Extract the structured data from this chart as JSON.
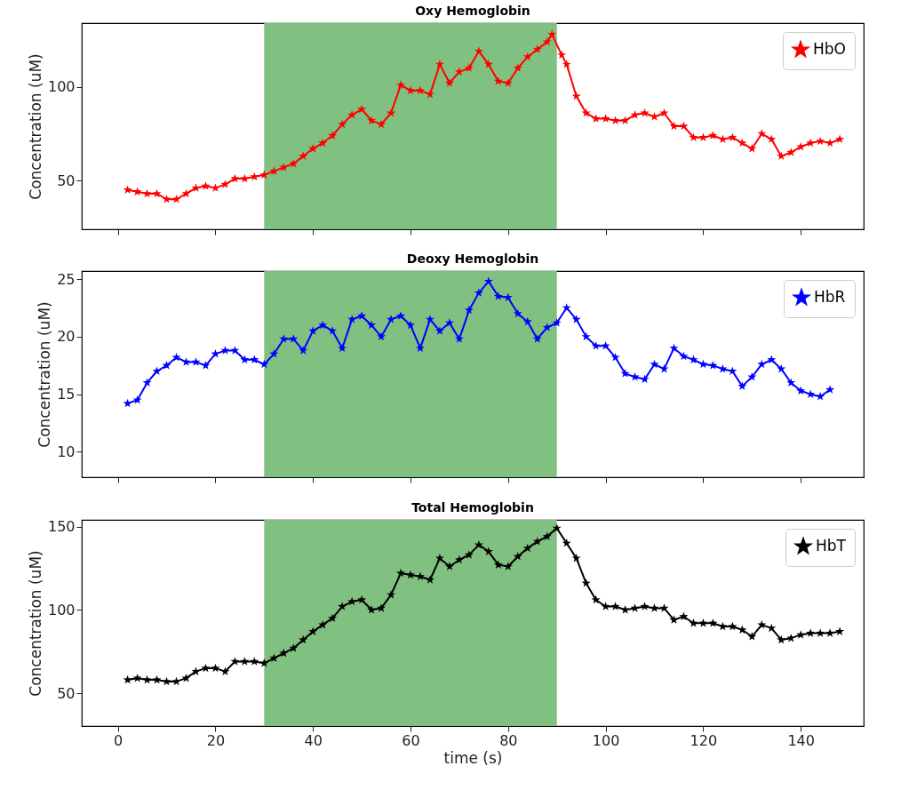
{
  "chart_data": [
    {
      "type": "line",
      "title": "Oxy  Hemoglobin",
      "ylabel": "Concentration (uM)",
      "tick_labels": "y",
      "legend": "top right",
      "marker": "star",
      "line_style": "solid",
      "grid": false,
      "x": [
        2,
        4,
        6,
        8,
        10,
        12,
        14,
        16,
        18,
        20,
        22,
        24,
        26,
        28,
        30,
        32,
        34,
        36,
        38,
        40,
        42,
        44,
        46,
        48,
        50,
        52,
        54,
        56,
        58,
        60,
        62,
        64,
        66,
        68,
        70,
        72,
        74,
        76,
        78,
        80,
        82,
        84,
        86,
        88,
        89,
        91,
        92,
        94,
        96,
        98,
        100,
        102,
        104,
        106,
        108,
        110,
        112,
        114,
        116,
        118,
        120,
        122,
        124,
        126,
        128,
        130,
        132,
        134,
        136,
        138,
        140,
        142,
        144,
        146,
        148
      ],
      "series": [
        {
          "name": "HbO",
          "color": "#ff0000",
          "values": [
            45,
            44,
            43,
            43,
            40,
            40,
            43,
            46,
            47,
            46,
            48,
            51,
            51,
            52,
            53,
            55,
            57,
            59,
            63,
            67,
            70,
            74,
            80,
            85,
            88,
            82,
            80,
            86,
            101,
            98,
            98,
            96,
            112,
            102,
            108,
            110,
            119,
            112,
            103,
            102,
            110,
            116,
            120,
            124,
            128,
            117,
            112,
            95,
            86,
            83,
            83,
            82,
            82,
            85,
            86,
            84,
            86,
            79,
            79,
            73,
            73,
            74,
            72,
            73,
            70,
            67,
            75,
            72,
            63,
            65,
            68,
            70,
            71,
            70,
            72
          ]
        }
      ],
      "xlim": [
        -7.4,
        152.9
      ],
      "xticks": [
        0,
        20,
        40,
        60,
        80,
        100,
        120,
        140
      ],
      "ylim": [
        24,
        134
      ],
      "yticks": [
        50,
        100
      ],
      "bands": [
        {
          "axis": "x",
          "from": 30,
          "to": 90,
          "color": "#80c080"
        }
      ]
    },
    {
      "type": "line",
      "title": "Deoxy  Hemoglobin",
      "ylabel": "Concentration (uM)",
      "tick_labels": "y",
      "legend": "top right",
      "marker": "star",
      "line_style": "solid",
      "grid": false,
      "x": [
        2,
        4,
        6,
        8,
        10,
        12,
        14,
        16,
        18,
        20,
        22,
        24,
        26,
        28,
        30,
        32,
        34,
        36,
        38,
        40,
        42,
        44,
        46,
        48,
        50,
        52,
        54,
        56,
        58,
        60,
        62,
        64,
        66,
        68,
        70,
        72,
        74,
        76,
        78,
        80,
        82,
        84,
        86,
        88,
        90,
        92,
        94,
        96,
        98,
        100,
        102,
        104,
        106,
        108,
        110,
        112,
        114,
        116,
        118,
        120,
        122,
        124,
        126,
        128,
        130,
        132,
        134,
        136,
        138,
        140,
        142,
        144,
        146
      ],
      "series": [
        {
          "name": "HbR",
          "color": "#0000ff",
          "values": [
            14.2,
            14.5,
            16,
            17,
            17.5,
            18.2,
            17.8,
            17.8,
            17.5,
            18.5,
            18.8,
            18.8,
            18,
            18,
            17.6,
            18.5,
            19.8,
            19.8,
            18.8,
            20.5,
            21,
            20.5,
            19,
            21.5,
            21.8,
            21,
            20,
            21.5,
            21.8,
            21,
            19,
            21.5,
            20.5,
            21.2,
            19.8,
            22.3,
            23.8,
            24.8,
            23.5,
            23.4,
            22,
            21.3,
            19.8,
            20.8,
            21.2,
            22.5,
            21.5,
            20,
            19.2,
            19.2,
            18.2,
            16.8,
            16.5,
            16.3,
            17.6,
            17.2,
            19,
            18.3,
            18,
            17.6,
            17.5,
            17.2,
            17,
            15.7,
            16.5,
            17.6,
            18,
            17.2,
            16,
            15.3,
            15,
            14.8,
            15.4
          ]
        }
      ],
      "xlim": [
        -7.4,
        152.9
      ],
      "xticks": [
        0,
        20,
        40,
        60,
        80,
        100,
        120,
        140
      ],
      "ylim": [
        7.8,
        25.7
      ],
      "yticks": [
        10,
        15,
        20,
        25
      ],
      "bands": [
        {
          "axis": "x",
          "from": 30,
          "to": 90,
          "color": "#80c080"
        }
      ]
    },
    {
      "type": "line",
      "title": "Total Hemoglobin",
      "xlabel": "time (s)",
      "ylabel": "Concentration (uM)",
      "legend": "top right",
      "marker": "star",
      "line_style": "solid",
      "grid": false,
      "x": [
        2,
        4,
        6,
        8,
        10,
        12,
        14,
        16,
        18,
        20,
        22,
        24,
        26,
        28,
        30,
        32,
        34,
        36,
        38,
        40,
        42,
        44,
        46,
        48,
        50,
        52,
        54,
        56,
        58,
        60,
        62,
        64,
        66,
        68,
        70,
        72,
        74,
        76,
        78,
        80,
        82,
        84,
        86,
        88,
        90,
        92,
        94,
        96,
        98,
        100,
        102,
        104,
        106,
        108,
        110,
        112,
        114,
        116,
        118,
        120,
        122,
        124,
        126,
        128,
        130,
        132,
        134,
        136,
        138,
        140,
        142,
        144,
        146,
        148
      ],
      "series": [
        {
          "name": "HbT",
          "color": "#000000",
          "values": [
            58,
            59,
            58,
            58,
            57,
            57,
            59,
            63,
            65,
            65,
            63,
            69,
            69,
            69,
            68,
            71,
            74,
            77,
            82,
            87,
            91,
            95,
            102,
            105,
            106,
            100,
            101,
            109,
            122,
            121,
            120,
            118,
            131,
            126,
            130,
            133,
            139,
            135,
            127,
            126,
            132,
            137,
            141,
            144,
            149,
            140,
            131,
            116,
            106,
            102,
            102,
            100,
            101,
            102,
            101,
            101,
            94,
            96,
            92,
            92,
            92,
            90,
            90,
            88,
            84,
            91,
            89,
            82,
            83,
            85,
            86,
            86,
            86,
            87
          ]
        }
      ],
      "xlim": [
        -7.4,
        152.9
      ],
      "xticks": [
        0,
        20,
        40,
        60,
        80,
        100,
        120,
        140
      ],
      "ylim": [
        30.3,
        154
      ],
      "yticks": [
        50,
        100,
        150
      ],
      "bands": [
        {
          "axis": "x",
          "from": 30,
          "to": 90,
          "color": "#80c080"
        }
      ]
    }
  ]
}
